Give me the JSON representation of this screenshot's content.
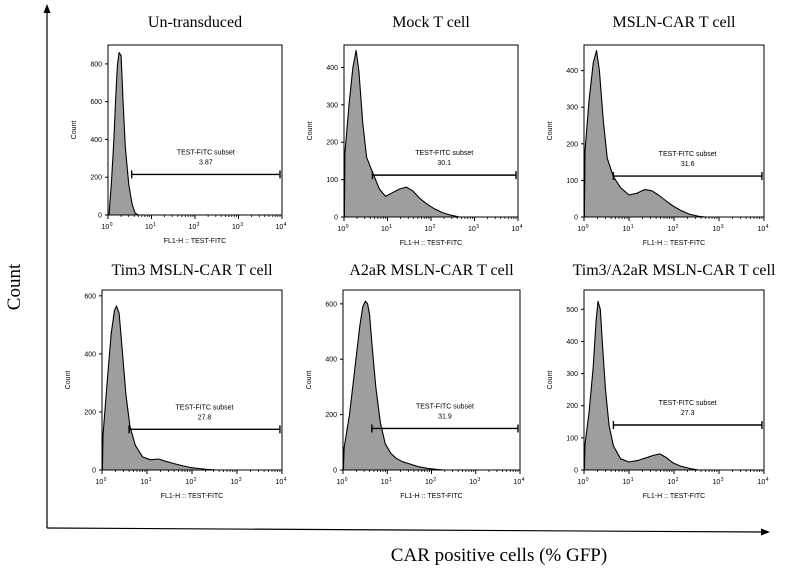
{
  "figure": {
    "x_axis_label": "CAR positive cells (% GFP)",
    "y_axis_label": "Count"
  },
  "chart_data": [
    {
      "type": "area",
      "title": "Un-transduced",
      "xlabel": "FL1-H :: TEST-FITC",
      "ylabel": "Count",
      "x_scale": "log",
      "xlim": [
        1,
        10000
      ],
      "ylim": [
        0,
        900
      ],
      "y_ticks": [
        "0",
        "200",
        "400",
        "600",
        "800"
      ],
      "x_ticks": [
        {
          "base": "10",
          "exp": "0"
        },
        {
          "base": "10",
          "exp": "1"
        },
        {
          "base": "10",
          "exp": "2"
        },
        {
          "base": "10",
          "exp": "3"
        },
        {
          "base": "10",
          "exp": "4"
        }
      ],
      "gate": {
        "label": "TEST-FITC subset",
        "value": "3.87",
        "x_start": 3.5,
        "x_end": 9000,
        "y": 215
      },
      "histogram": [
        [
          1.06,
          0
        ],
        [
          1.1,
          60
        ],
        [
          1.2,
          170
        ],
        [
          1.35,
          380
        ],
        [
          1.5,
          620
        ],
        [
          1.65,
          800
        ],
        [
          1.8,
          860
        ],
        [
          2.0,
          845
        ],
        [
          2.2,
          620
        ],
        [
          2.5,
          360
        ],
        [
          3.0,
          160
        ],
        [
          3.6,
          55
        ],
        [
          4.2,
          10
        ],
        [
          5,
          0
        ]
      ]
    },
    {
      "type": "area",
      "title": "Mock T cell",
      "xlabel": "FL1-H :: TEST-FITC",
      "ylabel": "Count",
      "x_scale": "log",
      "xlim": [
        1,
        10000
      ],
      "ylim": [
        0,
        460
      ],
      "y_ticks": [
        "0",
        "100",
        "200",
        "300",
        "400"
      ],
      "x_ticks": [
        {
          "base": "10",
          "exp": "0"
        },
        {
          "base": "10",
          "exp": "1"
        },
        {
          "base": "10",
          "exp": "2"
        },
        {
          "base": "10",
          "exp": "3"
        },
        {
          "base": "10",
          "exp": "4"
        }
      ],
      "gate": {
        "label": "TEST-FITC subset",
        "value": "30.1",
        "x_start": 4.5,
        "x_end": 9000,
        "y": 112
      },
      "histogram": [
        [
          1.02,
          0
        ],
        [
          1.05,
          170
        ],
        [
          1.3,
          300
        ],
        [
          1.6,
          400
        ],
        [
          1.9,
          445
        ],
        [
          2.2,
          390
        ],
        [
          2.7,
          250
        ],
        [
          3.3,
          160
        ],
        [
          4.5,
          120
        ],
        [
          6.5,
          75
        ],
        [
          9,
          55
        ],
        [
          13,
          65
        ],
        [
          19,
          75
        ],
        [
          27,
          80
        ],
        [
          38,
          70
        ],
        [
          55,
          50
        ],
        [
          80,
          35
        ],
        [
          120,
          22
        ],
        [
          180,
          12
        ],
        [
          280,
          5
        ],
        [
          450,
          0
        ]
      ]
    },
    {
      "type": "area",
      "title": "MSLN-CAR T cell",
      "xlabel": "FL1-H :: TEST-FITC",
      "ylabel": "Count",
      "x_scale": "log",
      "xlim": [
        1,
        10000
      ],
      "ylim": [
        0,
        470
      ],
      "y_ticks": [
        "0",
        "100",
        "200",
        "300",
        "400"
      ],
      "x_ticks": [
        {
          "base": "10",
          "exp": "0"
        },
        {
          "base": "10",
          "exp": "1"
        },
        {
          "base": "10",
          "exp": "2"
        },
        {
          "base": "10",
          "exp": "3"
        },
        {
          "base": "10",
          "exp": "4"
        }
      ],
      "gate": {
        "label": "TEST-FITC subset",
        "value": "31.6",
        "x_start": 4.5,
        "x_end": 9000,
        "y": 112
      },
      "histogram": [
        [
          1.02,
          0
        ],
        [
          1.05,
          180
        ],
        [
          1.3,
          320
        ],
        [
          1.6,
          420
        ],
        [
          1.9,
          455
        ],
        [
          2.2,
          400
        ],
        [
          2.7,
          260
        ],
        [
          3.3,
          160
        ],
        [
          4.5,
          110
        ],
        [
          6.5,
          80
        ],
        [
          10,
          60
        ],
        [
          15,
          65
        ],
        [
          22,
          75
        ],
        [
          32,
          72
        ],
        [
          45,
          60
        ],
        [
          65,
          45
        ],
        [
          95,
          30
        ],
        [
          140,
          18
        ],
        [
          220,
          8
        ],
        [
          350,
          2
        ],
        [
          500,
          0
        ]
      ]
    },
    {
      "type": "area",
      "title": "Tim3 MSLN-CAR T cell",
      "xlabel": "FL1-H :: TEST-FITC",
      "ylabel": "Count",
      "x_scale": "log",
      "xlim": [
        1,
        10000
      ],
      "ylim": [
        0,
        620
      ],
      "y_ticks": [
        "0",
        "200",
        "400",
        "600"
      ],
      "x_ticks": [
        {
          "base": "10",
          "exp": "0"
        },
        {
          "base": "10",
          "exp": "1"
        },
        {
          "base": "10",
          "exp": "2"
        },
        {
          "base": "10",
          "exp": "3"
        },
        {
          "base": "10",
          "exp": "4"
        }
      ],
      "gate": {
        "label": "TEST-FITC subset",
        "value": "27.8",
        "x_start": 4.0,
        "x_end": 9000,
        "y": 140
      },
      "histogram": [
        [
          1.02,
          0
        ],
        [
          1.05,
          120
        ],
        [
          1.3,
          300
        ],
        [
          1.6,
          470
        ],
        [
          1.9,
          550
        ],
        [
          2.1,
          565
        ],
        [
          2.4,
          540
        ],
        [
          2.8,
          420
        ],
        [
          3.4,
          260
        ],
        [
          4.2,
          150
        ],
        [
          5.5,
          85
        ],
        [
          8,
          45
        ],
        [
          12,
          35
        ],
        [
          18,
          38
        ],
        [
          26,
          30
        ],
        [
          40,
          22
        ],
        [
          60,
          15
        ],
        [
          90,
          9
        ],
        [
          140,
          5
        ],
        [
          220,
          2
        ],
        [
          350,
          0
        ]
      ]
    },
    {
      "type": "area",
      "title": "A2aR MSLN-CAR T cell",
      "xlabel": "FL1-H :: TEST-FITC",
      "ylabel": "Count",
      "x_scale": "log",
      "xlim": [
        1,
        10000
      ],
      "ylim": [
        0,
        650
      ],
      "y_ticks": [
        "0",
        "200",
        "400",
        "600"
      ],
      "x_ticks": [
        {
          "base": "10",
          "exp": "0"
        },
        {
          "base": "10",
          "exp": "1"
        },
        {
          "base": "10",
          "exp": "2"
        },
        {
          "base": "10",
          "exp": "3"
        },
        {
          "base": "10",
          "exp": "4"
        }
      ],
      "gate": {
        "label": "TEST-FITC subset",
        "value": "31.9",
        "x_start": 4.5,
        "x_end": 9000,
        "y": 150
      },
      "histogram": [
        [
          1.02,
          0
        ],
        [
          1.06,
          80
        ],
        [
          1.4,
          200
        ],
        [
          1.9,
          380
        ],
        [
          2.4,
          520
        ],
        [
          2.8,
          590
        ],
        [
          3.2,
          610
        ],
        [
          3.6,
          600
        ],
        [
          4.0,
          560
        ],
        [
          4.6,
          440
        ],
        [
          5.5,
          300
        ],
        [
          7,
          170
        ],
        [
          9,
          95
        ],
        [
          12,
          60
        ],
        [
          16,
          42
        ],
        [
          22,
          30
        ],
        [
          32,
          22
        ],
        [
          50,
          12
        ],
        [
          80,
          6
        ],
        [
          130,
          2
        ],
        [
          200,
          0
        ]
      ]
    },
    {
      "type": "area",
      "title": "Tim3/A2aR MSLN-CAR T cell",
      "xlabel": "FL1-H :: TEST-FITC",
      "ylabel": "Count",
      "x_scale": "log",
      "xlim": [
        1,
        10000
      ],
      "ylim": [
        0,
        560
      ],
      "y_ticks": [
        "0",
        "100",
        "200",
        "300",
        "400",
        "500"
      ],
      "x_ticks": [
        {
          "base": "10",
          "exp": "0"
        },
        {
          "base": "10",
          "exp": "1"
        },
        {
          "base": "10",
          "exp": "2"
        },
        {
          "base": "10",
          "exp": "3"
        },
        {
          "base": "10",
          "exp": "4"
        }
      ],
      "gate": {
        "label": "TEST-FITC subset",
        "value": "27.3",
        "x_start": 4.5,
        "x_end": 9000,
        "y": 140
      },
      "histogram": [
        [
          1.02,
          0
        ],
        [
          1.05,
          80
        ],
        [
          1.3,
          180
        ],
        [
          1.6,
          320
        ],
        [
          1.85,
          460
        ],
        [
          2.05,
          525
        ],
        [
          2.3,
          500
        ],
        [
          2.6,
          380
        ],
        [
          3.0,
          250
        ],
        [
          3.6,
          140
        ],
        [
          4.5,
          75
        ],
        [
          6.5,
          35
        ],
        [
          10,
          25
        ],
        [
          16,
          30
        ],
        [
          24,
          38
        ],
        [
          34,
          45
        ],
        [
          48,
          50
        ],
        [
          65,
          40
        ],
        [
          95,
          22
        ],
        [
          140,
          12
        ],
        [
          220,
          5
        ],
        [
          350,
          0
        ]
      ]
    }
  ]
}
